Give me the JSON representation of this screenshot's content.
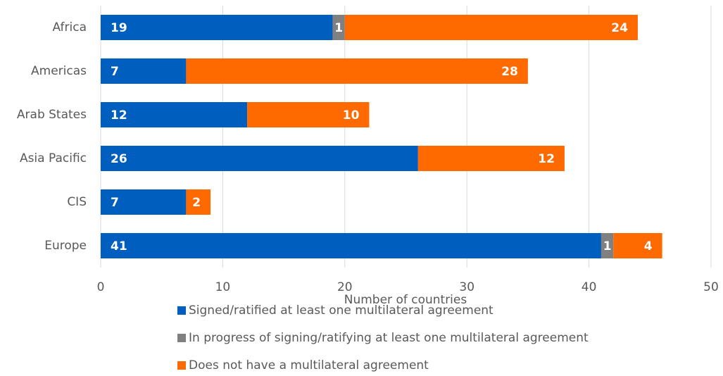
{
  "chart_data": {
    "type": "stacked_bar_horizontal",
    "x_label": "Number of countries",
    "categories": [
      "Africa",
      "Americas",
      "Arab States",
      "Asia Pacific",
      "CIS",
      "Europe"
    ],
    "series": [
      {
        "name": "Signed/ratified at least one multilateral agreement",
        "color": "#005ebf",
        "values": [
          19,
          7,
          12,
          26,
          7,
          41
        ]
      },
      {
        "name": "In progress of signing/ratifying at least one multilateral agreement",
        "color": "#808080",
        "values": [
          1,
          0,
          0,
          0,
          0,
          1
        ]
      },
      {
        "name": "Does not have a multilateral agreement",
        "color": "#ff6a00",
        "values": [
          24,
          28,
          10,
          12,
          2,
          4
        ]
      }
    ],
    "xlim": [
      0,
      50
    ],
    "xticks": [
      0,
      10,
      20,
      30,
      40,
      50
    ],
    "grid": true,
    "legend": "bottom"
  }
}
